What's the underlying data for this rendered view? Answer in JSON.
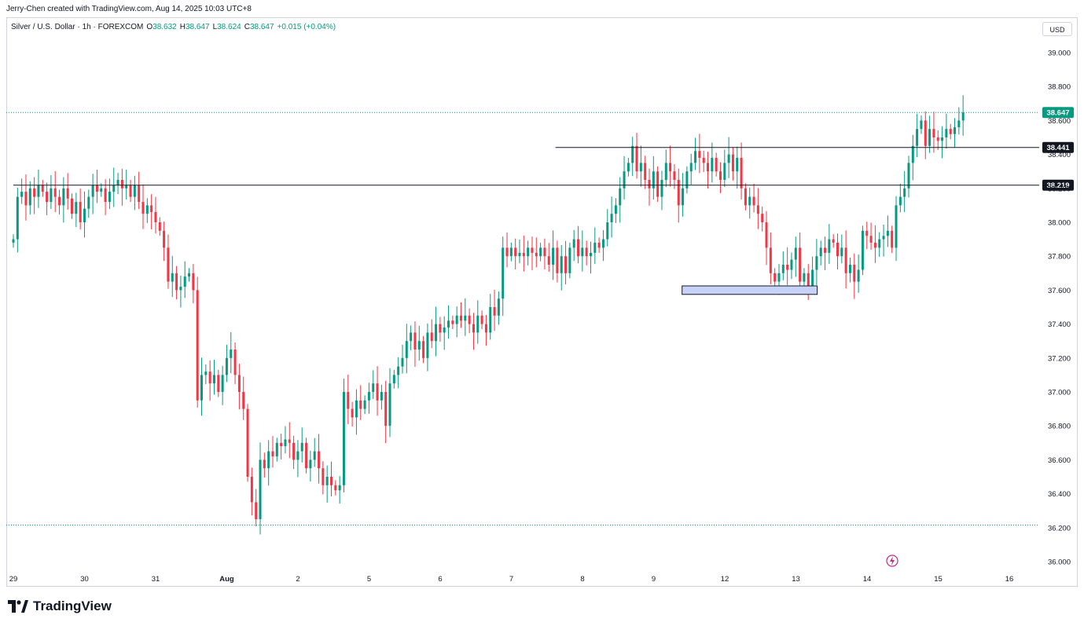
{
  "header": {
    "created_text": "Jerry-Chen created with TradingView.com, Aug 14, 2025 10:03 UTC+8"
  },
  "legend": {
    "symbol": "Silver / U.S. Dollar · 1h · FOREXCOM",
    "o_label": "O",
    "o_value": "38.632",
    "h_label": "H",
    "h_value": "38.647",
    "l_label": "L",
    "l_value": "38.624",
    "c_label": "C",
    "c_value": "38.647",
    "change": "+0.015 (+0.04%)"
  },
  "currency": "USD",
  "footer": {
    "brand": "TradingView"
  },
  "colors": {
    "up": "#089981",
    "down": "#f23645",
    "line": "#131722",
    "zone": "#c8d2f7"
  },
  "chart_data": {
    "type": "candlestick",
    "title": "Silver / U.S. Dollar · 1h · FOREXCOM",
    "ylim": [
      35.95,
      39.25
    ],
    "y_ticks": [
      "39.000",
      "38.800",
      "38.600",
      "38.400",
      "38.200",
      "38.000",
      "37.800",
      "37.600",
      "37.400",
      "37.200",
      "37.000",
      "36.800",
      "36.600",
      "36.400",
      "36.200",
      "36.000"
    ],
    "x_ticks": [
      "29",
      "30",
      "31",
      "Aug",
      "2",
      "5",
      "6",
      "7",
      "8",
      "9",
      "12",
      "13",
      "14",
      "15",
      "16"
    ],
    "x_range": [
      0,
      14.6
    ],
    "last_price": "38.647",
    "levels": [
      {
        "value": 38.441,
        "label": "38.441",
        "from_day": 7.62
      },
      {
        "value": 38.219,
        "label": "38.219",
        "from_day": 0
      }
    ],
    "dotted_lines": [
      38.647,
      36.215
    ],
    "support_zone": {
      "from_day": 9.4,
      "to_day": 11.3,
      "low": 37.575,
      "high": 37.625
    },
    "closes": [
      37.9,
      38.15,
      38.18,
      38.1,
      38.2,
      38.15,
      38.22,
      38.18,
      38.12,
      38.2,
      38.15,
      38.1,
      38.2,
      38.14,
      38.05,
      38.12,
      38.0,
      38.08,
      38.15,
      38.22,
      38.18,
      38.2,
      38.12,
      38.18,
      38.22,
      38.25,
      38.2,
      38.22,
      38.15,
      38.22,
      38.12,
      38.05,
      38.1,
      38.06,
      38.0,
      37.95,
      37.85,
      37.65,
      37.7,
      37.6,
      37.62,
      37.68,
      37.7,
      37.6,
      36.95,
      37.1,
      37.12,
      37.05,
      37.1,
      37.0,
      37.1,
      37.2,
      37.25,
      37.1,
      37.0,
      36.9,
      36.5,
      36.35,
      36.25,
      36.6,
      36.55,
      36.65,
      36.62,
      36.7,
      36.68,
      36.72,
      36.7,
      36.6,
      36.65,
      36.7,
      36.55,
      36.6,
      36.65,
      36.55,
      36.45,
      36.5,
      36.45,
      36.42,
      36.45,
      37.0,
      36.9,
      36.85,
      36.95,
      36.9,
      36.95,
      37.0,
      37.05,
      36.95,
      37.0,
      36.8,
      37.05,
      37.1,
      37.15,
      37.2,
      37.3,
      37.35,
      37.25,
      37.3,
      37.2,
      37.35,
      37.3,
      37.4,
      37.35,
      37.38,
      37.42,
      37.4,
      37.45,
      37.42,
      37.45,
      37.4,
      37.35,
      37.45,
      37.4,
      37.35,
      37.5,
      37.45,
      37.55,
      37.85,
      37.8,
      37.85,
      37.8,
      37.82,
      37.8,
      37.85,
      37.82,
      37.8,
      37.85,
      37.8,
      37.75,
      37.85,
      37.7,
      37.8,
      37.7,
      37.85,
      37.9,
      37.8,
      37.85,
      37.8,
      37.82,
      37.88,
      37.85,
      37.9,
      38.0,
      38.05,
      38.1,
      38.2,
      38.3,
      38.35,
      38.45,
      38.3,
      38.35,
      38.25,
      38.2,
      38.3,
      38.15,
      38.25,
      38.35,
      38.3,
      38.25,
      38.1,
      38.2,
      38.3,
      38.35,
      38.42,
      38.38,
      38.35,
      38.3,
      38.38,
      38.3,
      38.25,
      38.35,
      38.4,
      38.3,
      38.38,
      38.2,
      38.1,
      38.15,
      38.1,
      38.05,
      38.0,
      37.85,
      37.7,
      37.65,
      37.7,
      37.75,
      37.72,
      37.78,
      37.85,
      37.65,
      37.7,
      37.62,
      37.72,
      37.8,
      37.85,
      37.82,
      37.9,
      37.88,
      37.8,
      37.85,
      37.7,
      37.75,
      37.65,
      37.72,
      37.95,
      37.92,
      37.88,
      37.85,
      37.9,
      37.92,
      37.95,
      37.85,
      38.1,
      38.15,
      38.2,
      38.35,
      38.45,
      38.55,
      38.6,
      38.45,
      38.55,
      38.5,
      38.48,
      38.5,
      38.55,
      38.52,
      38.56,
      38.6,
      38.647
    ]
  }
}
